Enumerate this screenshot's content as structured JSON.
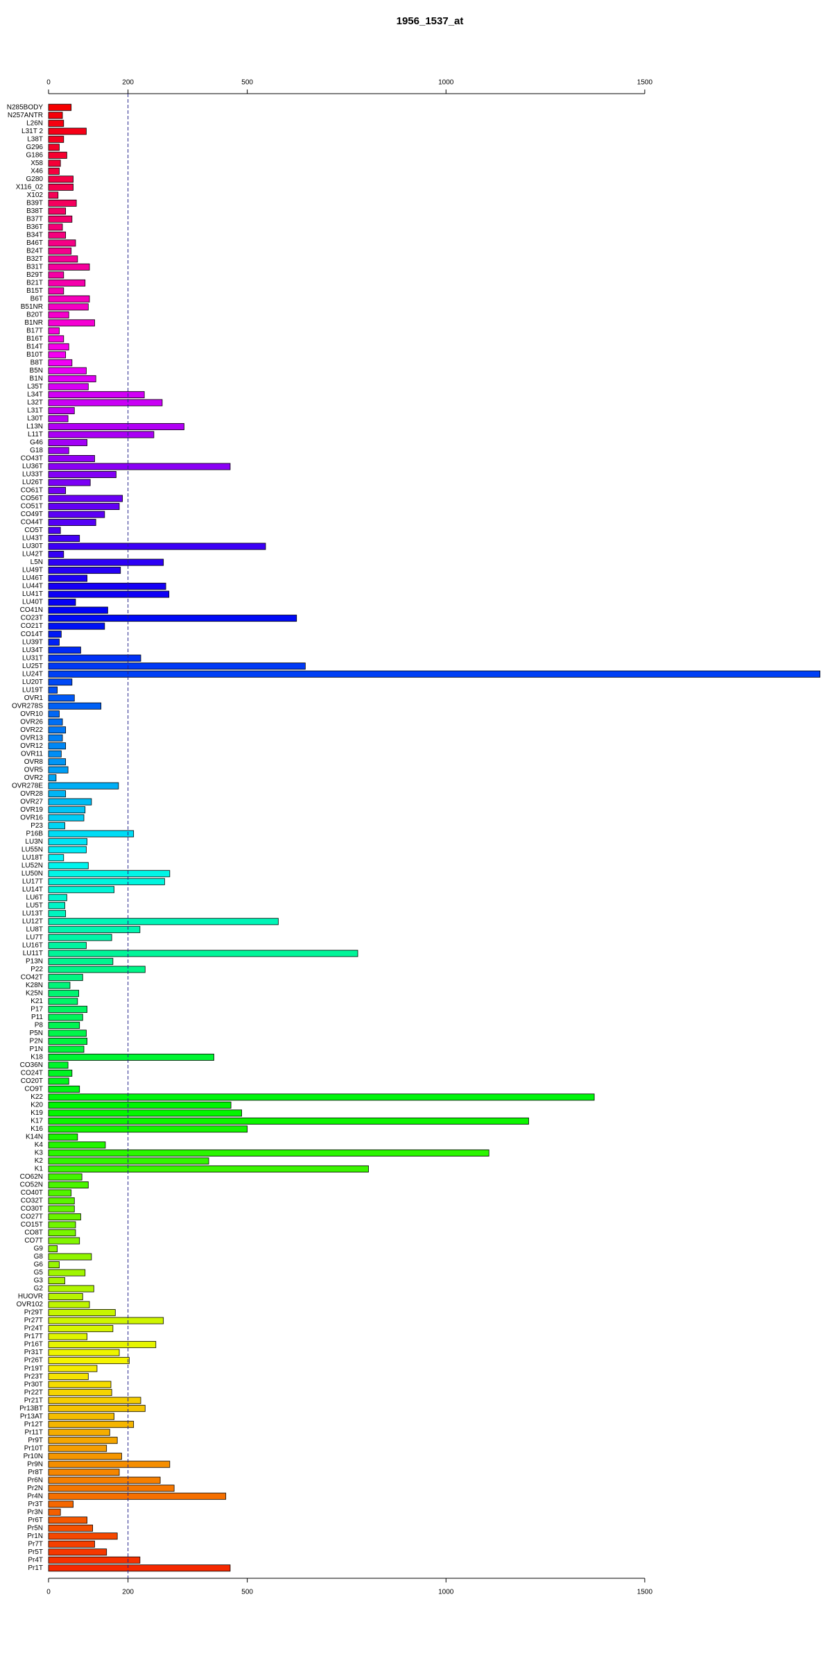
{
  "chart_data": {
    "type": "bar",
    "orientation": "horizontal",
    "title": "1956_1537_at",
    "categories": [
      "N285BODY",
      "N257ANTR",
      "L26N",
      "L31T 2",
      "L38T",
      "G296",
      "G186",
      "X58",
      "X46",
      "G280",
      "X116_02",
      "X102",
      "B39T",
      "B38T",
      "B37T",
      "B36T",
      "B34T",
      "B46T",
      "B24T",
      "B32T",
      "B31T",
      "B29T",
      "B21T",
      "B15T",
      "B6T",
      "B51NR",
      "B20T",
      "B1NR",
      "B17T",
      "B16T",
      "B14T",
      "B10T",
      "B8T",
      "B5N",
      "B1N",
      "L35T",
      "L34T",
      "L32T",
      "L31T",
      "L30T",
      "L13N",
      "L11T",
      "G46",
      "G18",
      "CO43T",
      "LU36T",
      "LU33T",
      "LU26T",
      "CO61T",
      "CO56T",
      "CO51T",
      "CO49T",
      "CO44T",
      "CO5T",
      "LU43T",
      "LU30T",
      "LU42T",
      "L5N",
      "LU49T",
      "LU46T",
      "LU44T",
      "LU41T",
      "LU40T",
      "CO41N",
      "CO23T",
      "CO21T",
      "CO14T",
      "LU39T",
      "LU34T",
      "LU31T",
      "LU25T",
      "LU24T",
      "LU20T",
      "LU19T",
      "OVR1",
      "OVR278S",
      "OVR10",
      "OVR26",
      "OVR22",
      "OVR13",
      "OVR12",
      "OVR11",
      "OVR8",
      "OVR5",
      "OVR2",
      "OVR278E",
      "OVR28",
      "OVR27",
      "OVR19",
      "OVR16",
      "P23",
      "P16B",
      "LU3N",
      "LU55N",
      "LU18T",
      "LU52N",
      "LU50N",
      "LU17T",
      "LU14T",
      "LU6T",
      "LU5T",
      "LU13T",
      "LU12T",
      "LU8T",
      "LU7T",
      "LU16T",
      "LU11T",
      "P13N",
      "P22",
      "CO42T",
      "K28N",
      "K25N",
      "K21",
      "P17",
      "P11",
      "P8",
      "P5N",
      "P2N",
      "P1N",
      "K18",
      "CO36N",
      "CO24T",
      "CO20T",
      "CO9T",
      "K22",
      "K20",
      "K19",
      "K17",
      "K16",
      "K14N",
      "K4",
      "K3",
      "K2",
      "K1",
      "CO62N",
      "CO52N",
      "CO40T",
      "CO32T",
      "CO30T",
      "CO27T",
      "CO15T",
      "CO8T",
      "CO7T",
      "G9",
      "G8",
      "G6",
      "G5",
      "G3",
      "G2",
      "HUOVR",
      "OVR102",
      "Pr29T",
      "Pr27T",
      "Pr24T",
      "Pr17T",
      "Pr16T",
      "Pr31T",
      "Pr26T",
      "Pr19T",
      "Pr23T",
      "Pr30T",
      "Pr22T",
      "Pr21T",
      "Pr13BT",
      "Pr13AT",
      "Pr12T",
      "Pr11T",
      "Pr9T",
      "Pr10T",
      "Pr10N",
      "Pr9N",
      "Pr8T",
      "Pr6N",
      "Pr2N",
      "Pr4N",
      "Pr3T",
      "Pr3N",
      "Pr6T",
      "Pr5N",
      "Pr1N",
      "Pr7T",
      "Pr5T",
      "Pr4T",
      "Pr1T"
    ],
    "values": [
      57,
      35,
      38,
      95,
      38,
      27,
      46,
      30,
      27,
      62,
      62,
      24,
      70,
      43,
      59,
      35,
      43,
      68,
      57,
      73,
      103,
      38,
      92,
      38,
      103,
      100,
      51,
      116,
      27,
      38,
      51,
      43,
      59,
      95,
      119,
      100,
      241,
      286,
      65,
      49,
      341,
      265,
      97,
      51,
      116,
      457,
      170,
      105,
      43,
      186,
      178,
      141,
      119,
      30,
      78,
      546,
      38,
      289,
      181,
      97,
      295,
      303,
      68,
      149,
      624,
      141,
      32,
      27,
      81,
      232,
      646,
      1941,
      59,
      22,
      65,
      132,
      27,
      35,
      43,
      35,
      43,
      32,
      43,
      49,
      19,
      176,
      43,
      108,
      92,
      89,
      41,
      214,
      97,
      95,
      38,
      100,
      305,
      292,
      165,
      46,
      41,
      43,
      578,
      230,
      159,
      95,
      778,
      162,
      243,
      86,
      54,
      76,
      73,
      97,
      86,
      78,
      95,
      97,
      89,
      416,
      49,
      59,
      51,
      78,
      1373,
      459,
      486,
      1208,
      500,
      73,
      143,
      1108,
      403,
      805,
      84,
      100,
      57,
      65,
      65,
      81,
      68,
      68,
      78,
      22,
      108,
      27,
      92,
      41,
      114,
      86,
      103,
      168,
      289,
      162,
      97,
      270,
      178,
      203,
      122,
      100,
      157,
      159,
      232,
      243,
      165,
      214,
      154,
      173,
      146,
      184,
      305,
      178,
      281,
      316,
      446,
      62,
      30,
      97,
      111,
      173,
      116,
      146,
      230,
      457
    ],
    "palette": "rainbow",
    "xlim": [
      0,
      1945
    ],
    "xticks": [
      0,
      200,
      500,
      1000,
      1500
    ],
    "vline": 200
  }
}
